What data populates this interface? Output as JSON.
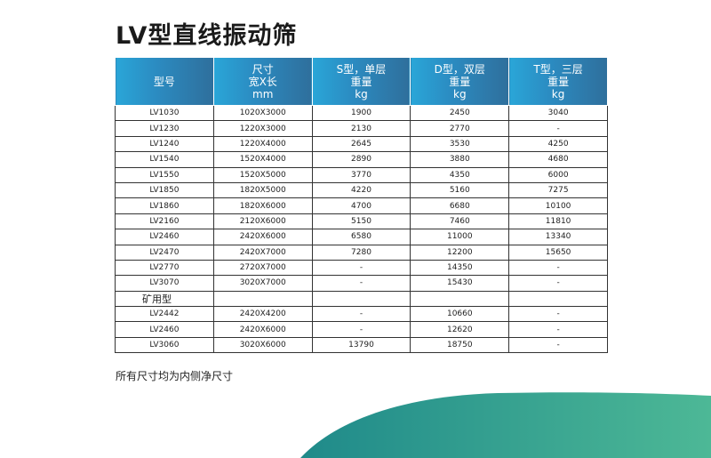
{
  "title": "LV型直线振动筛",
  "headers": [
    [
      "型号"
    ],
    [
      "尺寸",
      "宽X长",
      "mm"
    ],
    [
      "S型，单层",
      "重量",
      "kg"
    ],
    [
      "D型，双层",
      "重量",
      "kg"
    ],
    [
      "T型，三层",
      "重量",
      "kg"
    ]
  ],
  "rows": [
    [
      "LV1030",
      "1020X3000",
      "1900",
      "2450",
      "3040"
    ],
    [
      "LV1230",
      "1220X3000",
      "2130",
      "2770",
      "-"
    ],
    [
      "LV1240",
      "1220X4000",
      "2645",
      "3530",
      "4250"
    ],
    [
      "LV1540",
      "1520X4000",
      "2890",
      "3880",
      "4680"
    ],
    [
      "LV1550",
      "1520X5000",
      "3770",
      "4350",
      "6000"
    ],
    [
      "LV1850",
      "1820X5000",
      "4220",
      "5160",
      "7275"
    ],
    [
      "LV1860",
      "1820X6000",
      "4700",
      "6680",
      "10100"
    ],
    [
      "LV2160",
      "2120X6000",
      "5150",
      "7460",
      "11810"
    ],
    [
      "LV2460",
      "2420X6000",
      "6580",
      "11000",
      "13340"
    ],
    [
      "LV2470",
      "2420X7000",
      "7280",
      "12200",
      "15650"
    ],
    [
      "LV2770",
      "2720X7000",
      "-",
      "14350",
      "-"
    ],
    [
      "LV3070",
      "3020X7000",
      "-",
      "15430",
      "-"
    ]
  ],
  "section_label": "矿用型",
  "mining_rows": [
    [
      "LV2442",
      "2420X4200",
      "-",
      "10660",
      "-"
    ],
    [
      "LV2460",
      "2420X6000",
      "-",
      "12620",
      "-"
    ],
    [
      "LV3060",
      "3020X6000",
      "13790",
      "18750",
      "-"
    ]
  ],
  "note": "所有尺寸均为内侧净尺寸",
  "colors": {
    "header_start": "#2aa6d8",
    "header_end": "#2f6f9c",
    "wave_start": "#1f8a8a",
    "wave_end": "#4db896"
  }
}
